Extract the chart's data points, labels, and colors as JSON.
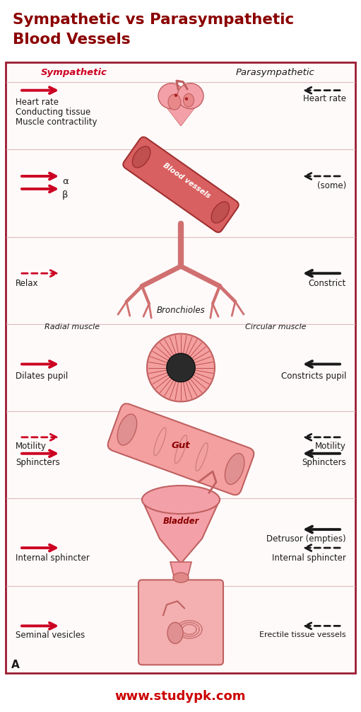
{
  "title_line1": "Sympathetic vs Parasympathetic",
  "title_line2": "Blood Vessels",
  "title_color": "#8B0000",
  "background_color": "#FFFFFF",
  "border_color": "#9B1B30",
  "footer": "www.studypk.com",
  "footer_color": "#CC0000",
  "symp_label": "Sympathetic",
  "para_label": "Parasympathetic",
  "symp_color": "#CC0022",
  "para_color": "#1a1a1a",
  "inner_bg": "#FFFAFA",
  "organ_fill": "#F4A0A8",
  "organ_edge": "#C06060",
  "organ_dark": "#E07070",
  "section_divider": "#DDBBBB",
  "sections": [
    {
      "id": "heart",
      "symp_texts": [
        "Heart rate",
        "Conducting tissue",
        "Muscle contractility"
      ],
      "symp_arrows": [
        "solid"
      ],
      "para_texts": [
        "Heart rate"
      ],
      "para_arrows": [
        "dashed"
      ]
    },
    {
      "id": "blood_vessels",
      "symp_texts": [
        "α",
        "β"
      ],
      "symp_arrows": [
        "solid",
        "solid"
      ],
      "para_texts": [
        "(some)"
      ],
      "para_arrows": [
        "dashed"
      ]
    },
    {
      "id": "bronchioles",
      "symp_texts": [
        "Relax"
      ],
      "symp_arrows": [
        "dashed"
      ],
      "para_texts": [
        "Constrict"
      ],
      "para_arrows": [
        "solid"
      ]
    },
    {
      "id": "eye",
      "symp_italic": "Radial muscle",
      "para_italic": "Circular muscle",
      "symp_texts": [
        "Dilates pupil"
      ],
      "symp_arrows": [
        "solid"
      ],
      "para_texts": [
        "Constricts pupil"
      ],
      "para_arrows": [
        "solid"
      ]
    },
    {
      "id": "gut",
      "symp_texts": [
        "Motility",
        "Sphincters"
      ],
      "symp_arrows": [
        "dashed",
        "solid"
      ],
      "para_texts": [
        "Motility",
        "Sphincters"
      ],
      "para_arrows": [
        "dashed",
        "solid"
      ]
    },
    {
      "id": "bladder",
      "symp_texts": [
        "Internal sphincter"
      ],
      "symp_arrows": [
        "solid"
      ],
      "para_texts": [
        "Detrusor (empties)",
        "Internal sphincter"
      ],
      "para_arrows": [
        "solid",
        "dashed"
      ]
    },
    {
      "id": "reproductive",
      "symp_texts": [
        "Seminal vesicles"
      ],
      "symp_arrows": [
        "solid"
      ],
      "para_texts": [
        "Erectile tissue vessels"
      ],
      "para_arrows": [
        "dashed"
      ]
    }
  ]
}
